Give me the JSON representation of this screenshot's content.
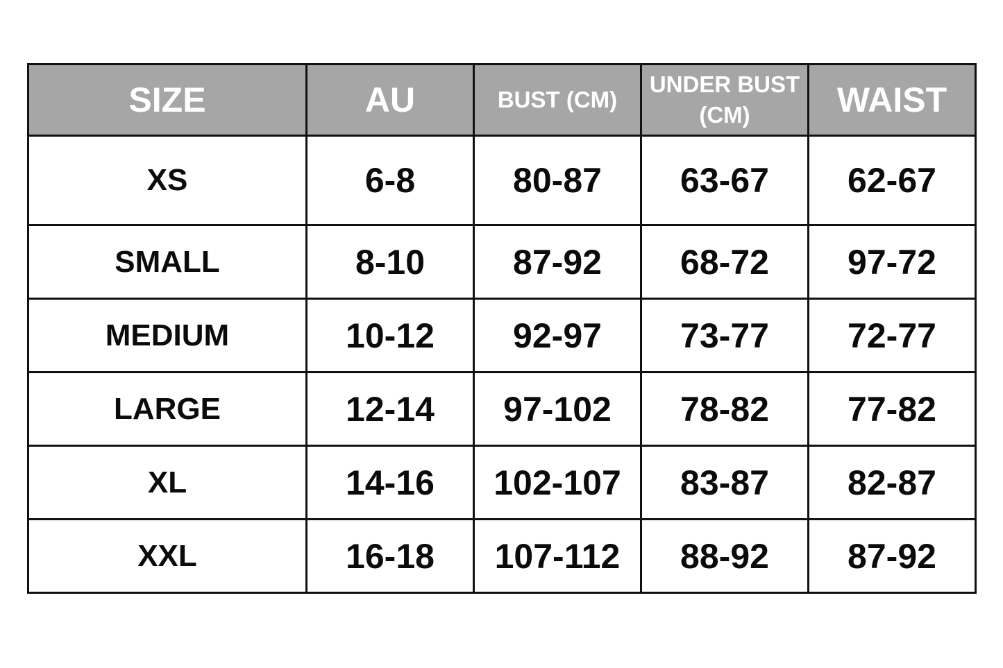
{
  "header": {
    "size": "SIZE",
    "au": "AU",
    "bust": "BUST (CM)",
    "under_bust_line1": "UNDER BUST",
    "under_bust_line2": "(CM)",
    "waist": "WAIST"
  },
  "colors": {
    "header_bg": "#a6a6a6",
    "header_text": "#ffffff",
    "border": "#111111"
  },
  "rows": [
    {
      "size": "XS",
      "au": "6-8",
      "bust": "80-87",
      "under_bust": "63-67",
      "waist": "62-67"
    },
    {
      "size": "SMALL",
      "au": "8-10",
      "bust": "87-92",
      "under_bust": "68-72",
      "waist": "97-72"
    },
    {
      "size": "MEDIUM",
      "au": "10-12",
      "bust": "92-97",
      "under_bust": "73-77",
      "waist": "72-77"
    },
    {
      "size": "LARGE",
      "au": "12-14",
      "bust": "97-102",
      "under_bust": "78-82",
      "waist": "77-82"
    },
    {
      "size": "XL",
      "au": "14-16",
      "bust": "102-107",
      "under_bust": "83-87",
      "waist": "82-87"
    },
    {
      "size": "XXL",
      "au": "16-18",
      "bust": "107-112",
      "under_bust": "88-92",
      "waist": "87-92"
    }
  ]
}
